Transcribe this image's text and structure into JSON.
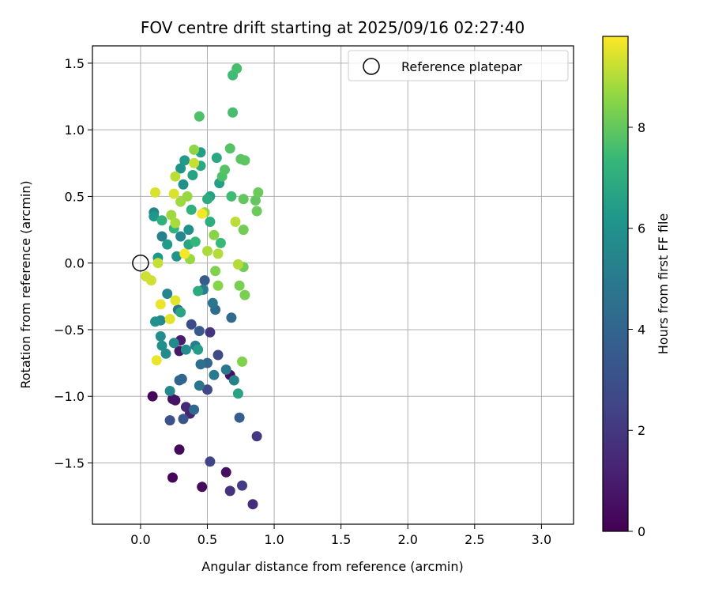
{
  "chart_data": {
    "type": "scatter",
    "title": "FOV centre drift starting at 2025/09/16 02:27:40",
    "xlabel": "Angular distance from reference (arcmin)",
    "ylabel": "Rotation from reference (arcmin)",
    "xlim": [
      -0.36,
      3.24
    ],
    "ylim": [
      -1.96,
      1.63
    ],
    "xticks": [
      0.0,
      0.5,
      1.0,
      1.5,
      2.0,
      2.5,
      3.0
    ],
    "xtick_labels": [
      "0.0",
      "0.5",
      "1.0",
      "1.5",
      "2.0",
      "2.5",
      "3.0"
    ],
    "yticks": [
      -1.5,
      -1.0,
      -0.5,
      0.0,
      0.5,
      1.0,
      1.5
    ],
    "ytick_labels": [
      "−1.5",
      "−1.0",
      "−0.5",
      "0.0",
      "0.5",
      "1.0",
      "1.5"
    ],
    "grid": true,
    "colorbar": {
      "label": "Hours from first FF file",
      "min": 0,
      "max": 9.8,
      "ticks": [
        0,
        2,
        4,
        6,
        8
      ],
      "tick_labels": [
        "0",
        "2",
        "4",
        "6",
        "8"
      ],
      "colormap": "viridis"
    },
    "legend": {
      "position": "top-right",
      "entries": [
        {
          "label": "Reference platepar",
          "marker": "open-circle"
        }
      ]
    },
    "reference_point": {
      "x": 0.0,
      "y": 0.0
    },
    "points": [
      [
        0.09,
        -1.0,
        0.2
      ],
      [
        0.24,
        -1.61,
        0.2
      ],
      [
        0.29,
        -1.4,
        0.3
      ],
      [
        0.46,
        -1.68,
        0.4
      ],
      [
        0.64,
        -1.57,
        0.5
      ],
      [
        0.67,
        -0.84,
        0.5
      ],
      [
        0.24,
        -1.02,
        0.6
      ],
      [
        0.26,
        -1.03,
        0.7
      ],
      [
        0.29,
        -0.66,
        0.8
      ],
      [
        0.3,
        -0.58,
        1.0
      ],
      [
        0.37,
        -1.13,
        1.2
      ],
      [
        0.34,
        -1.08,
        1.4
      ],
      [
        0.84,
        -1.81,
        1.6
      ],
      [
        0.67,
        -1.71,
        1.8
      ],
      [
        0.52,
        -0.52,
        1.9
      ],
      [
        0.87,
        -1.3,
        2.0
      ],
      [
        0.76,
        -1.67,
        2.2
      ],
      [
        0.52,
        -1.49,
        2.5
      ],
      [
        0.5,
        -0.95,
        2.6
      ],
      [
        0.58,
        -0.69,
        2.7
      ],
      [
        0.38,
        -0.46,
        2.8
      ],
      [
        0.22,
        -1.18,
        3.0
      ],
      [
        0.32,
        -1.17,
        3.3
      ],
      [
        0.44,
        -0.51,
        3.5
      ],
      [
        0.48,
        -0.13,
        3.6
      ],
      [
        0.74,
        -1.16,
        3.7
      ],
      [
        0.29,
        -0.88,
        3.9
      ],
      [
        0.31,
        -0.87,
        4.0
      ],
      [
        0.5,
        -0.75,
        4.1
      ],
      [
        0.4,
        -1.1,
        4.2
      ],
      [
        0.68,
        -0.41,
        4.3
      ],
      [
        0.56,
        -0.35,
        4.4
      ],
      [
        0.45,
        -0.76,
        4.5
      ],
      [
        0.28,
        -0.35,
        4.6
      ],
      [
        0.44,
        -0.92,
        4.7
      ],
      [
        0.54,
        -0.3,
        4.8
      ],
      [
        0.64,
        -0.8,
        4.9
      ],
      [
        0.55,
        -0.84,
        5.0
      ],
      [
        0.47,
        -0.2,
        5.1
      ],
      [
        0.41,
        -0.62,
        5.2
      ],
      [
        0.7,
        -0.88,
        5.3
      ],
      [
        0.16,
        0.2,
        5.3
      ],
      [
        0.1,
        0.38,
        5.4
      ],
      [
        0.3,
        0.2,
        5.5
      ],
      [
        0.2,
        -0.23,
        5.5
      ],
      [
        0.15,
        -0.43,
        5.6
      ],
      [
        0.22,
        -0.96,
        5.6
      ],
      [
        0.25,
        -0.6,
        5.7
      ],
      [
        0.19,
        -0.68,
        5.7
      ],
      [
        0.34,
        -0.65,
        5.8
      ],
      [
        0.15,
        -0.55,
        5.8
      ],
      [
        0.16,
        -0.62,
        5.9
      ],
      [
        0.32,
        0.59,
        5.9
      ],
      [
        0.36,
        0.25,
        6.0
      ],
      [
        0.11,
        -0.44,
        6.0
      ],
      [
        0.27,
        0.05,
        6.1
      ],
      [
        0.3,
        0.71,
        6.1
      ],
      [
        0.1,
        0.35,
        6.2
      ],
      [
        0.13,
        0.04,
        6.2
      ],
      [
        0.2,
        0.14,
        6.3
      ],
      [
        0.33,
        0.77,
        6.3
      ],
      [
        0.45,
        0.83,
        6.4
      ],
      [
        0.43,
        -0.65,
        6.4
      ],
      [
        0.52,
        0.5,
        6.5
      ],
      [
        0.59,
        0.6,
        6.5
      ],
      [
        0.73,
        -0.98,
        6.6
      ],
      [
        0.39,
        0.66,
        6.6
      ],
      [
        0.36,
        0.14,
        6.7
      ],
      [
        0.3,
        -0.37,
        6.7
      ],
      [
        0.45,
        0.73,
        6.8
      ],
      [
        0.57,
        0.79,
        6.8
      ],
      [
        0.43,
        -0.21,
        6.9
      ],
      [
        0.5,
        0.48,
        6.9
      ],
      [
        0.52,
        0.31,
        7.0
      ],
      [
        0.38,
        0.4,
        7.1
      ],
      [
        0.16,
        0.32,
        7.1
      ],
      [
        0.25,
        0.26,
        7.2
      ],
      [
        0.41,
        0.16,
        7.3
      ],
      [
        0.6,
        0.15,
        7.4
      ],
      [
        0.68,
        0.5,
        7.5
      ],
      [
        0.69,
        1.41,
        7.5
      ],
      [
        0.72,
        1.46,
        7.6
      ],
      [
        0.69,
        1.13,
        7.6
      ],
      [
        0.44,
        1.1,
        7.7
      ],
      [
        0.61,
        0.65,
        7.7
      ],
      [
        0.67,
        0.86,
        7.8
      ],
      [
        0.63,
        0.7,
        7.8
      ],
      [
        0.75,
        0.78,
        7.9
      ],
      [
        0.78,
        0.77,
        7.9
      ],
      [
        0.77,
        0.48,
        8.0
      ],
      [
        0.86,
        0.47,
        8.0
      ],
      [
        0.88,
        0.53,
        8.1
      ],
      [
        0.87,
        0.39,
        8.1
      ],
      [
        0.77,
        0.25,
        8.2
      ],
      [
        0.77,
        -0.03,
        8.2
      ],
      [
        0.74,
        -0.17,
        8.3
      ],
      [
        0.78,
        -0.24,
        8.3
      ],
      [
        0.76,
        -0.74,
        8.4
      ],
      [
        0.56,
        -0.06,
        8.4
      ],
      [
        0.58,
        -0.17,
        8.5
      ],
      [
        0.55,
        0.21,
        8.5
      ],
      [
        0.48,
        0.38,
        8.6
      ],
      [
        0.4,
        0.85,
        8.6
      ],
      [
        0.37,
        0.03,
        8.7
      ],
      [
        0.35,
        0.5,
        8.7
      ],
      [
        0.23,
        0.36,
        8.8
      ],
      [
        0.3,
        0.46,
        8.8
      ],
      [
        0.26,
        0.3,
        8.9
      ],
      [
        0.5,
        0.09,
        8.9
      ],
      [
        0.58,
        0.07,
        9.0
      ],
      [
        0.73,
        -0.01,
        9.0
      ],
      [
        0.71,
        0.31,
        9.1
      ],
      [
        0.26,
        0.65,
        9.1
      ],
      [
        0.4,
        0.75,
        9.2
      ],
      [
        0.13,
        0.0,
        9.2
      ],
      [
        0.08,
        -0.13,
        9.3
      ],
      [
        0.04,
        -0.1,
        9.3
      ],
      [
        0.11,
        0.53,
        9.4
      ],
      [
        0.25,
        0.52,
        9.4
      ],
      [
        0.22,
        -0.42,
        9.5
      ],
      [
        0.26,
        -0.28,
        9.5
      ],
      [
        0.12,
        -0.73,
        9.6
      ],
      [
        0.15,
        -0.31,
        9.6
      ],
      [
        0.33,
        0.07,
        9.7
      ],
      [
        0.46,
        0.37,
        9.7
      ]
    ]
  }
}
